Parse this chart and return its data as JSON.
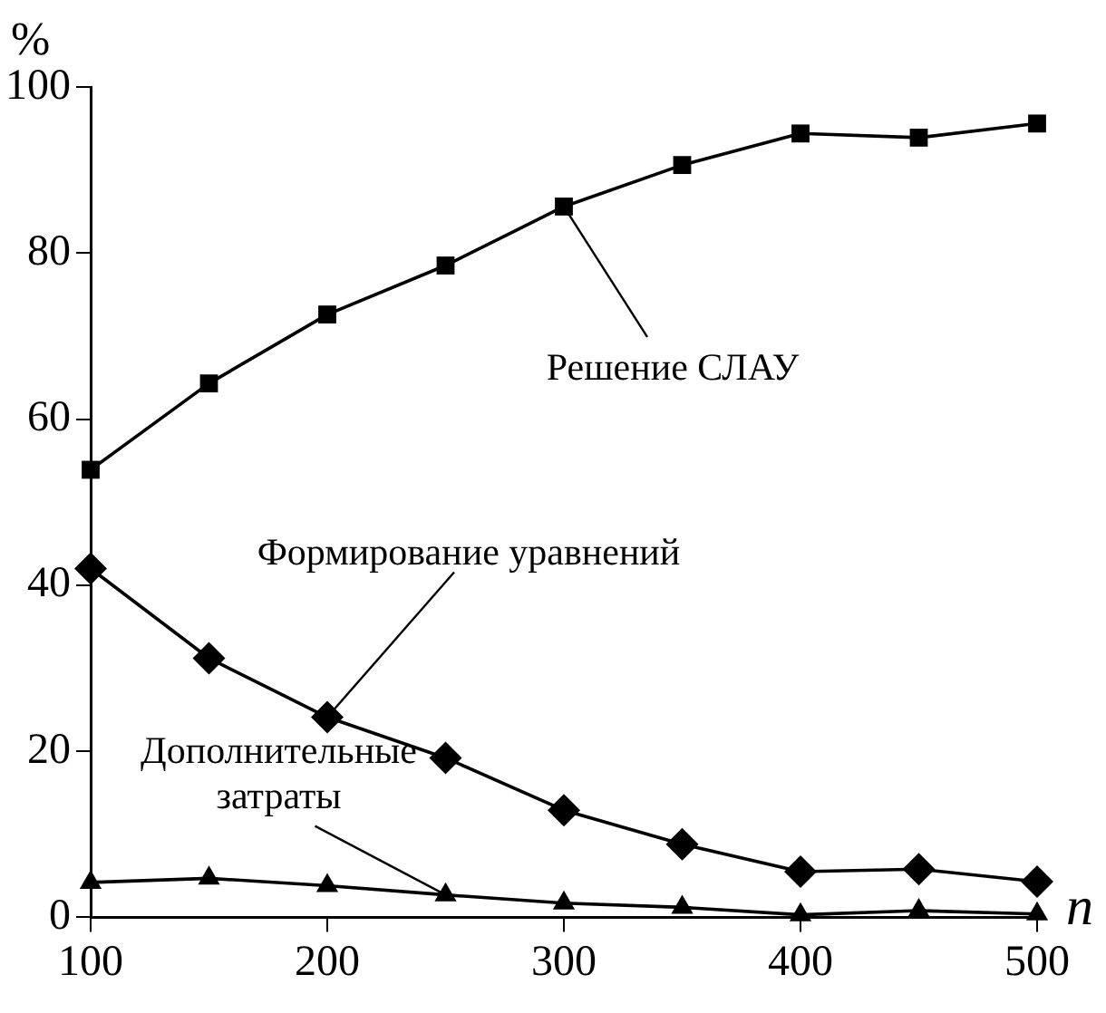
{
  "chart_data": {
    "type": "line",
    "xlabel": "n",
    "ylabel": "%",
    "x": [
      100,
      150,
      200,
      250,
      300,
      350,
      400,
      450,
      500
    ],
    "xlim": [
      100,
      500
    ],
    "xticks": [
      100,
      200,
      300,
      400,
      500
    ],
    "ylim": [
      0,
      100
    ],
    "yticks": [
      0,
      20,
      40,
      60,
      80,
      100
    ],
    "grid": false,
    "legend": false,
    "line_style": "solid",
    "series": [
      {
        "name": "Решение СЛАУ",
        "color": "#000000",
        "marker": "square",
        "values": [
          53.9,
          64.3,
          72.6,
          78.5,
          85.6,
          90.6,
          94.4,
          93.9,
          95.6
        ]
      },
      {
        "name": "Формирование уравнений",
        "color": "#000000",
        "marker": "diamond",
        "values": [
          42,
          31.2,
          24.1,
          19.2,
          12.9,
          8.8,
          5.5,
          5.8,
          4.3
        ]
      },
      {
        "name": "Дополнительные затраты",
        "color": "#000000",
        "marker": "triangle",
        "values": [
          4.2,
          4.7,
          3.8,
          2.7,
          1.7,
          1.2,
          0.3,
          0.8,
          0.4
        ]
      }
    ]
  }
}
